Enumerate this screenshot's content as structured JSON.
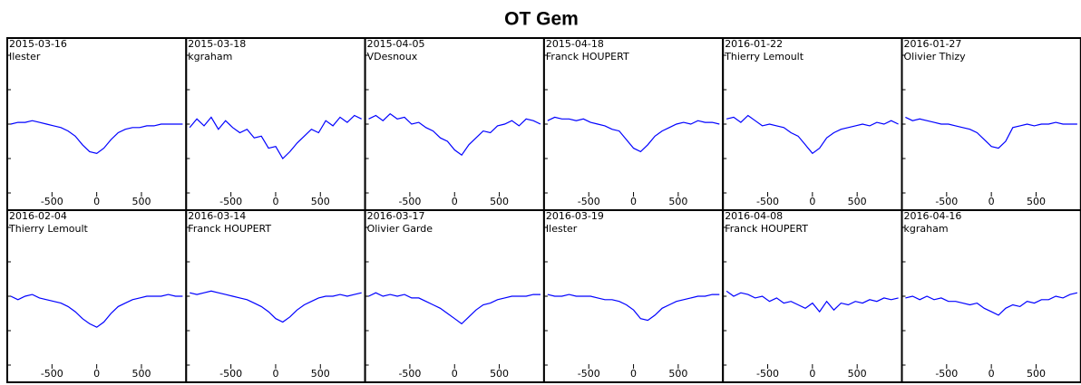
{
  "title": "OT Gem",
  "chart_data": [
    {
      "type": "line",
      "title": "2015-03-16",
      "subtitle": "Ilester",
      "color": "#0000ff",
      "xlim": [
        -1000,
        1000
      ],
      "xticks": [
        -500,
        0,
        500
      ],
      "ylim": [
        0.5,
        1.5
      ],
      "yticks": [
        0.6,
        0.8,
        1.0,
        1.2,
        1.4
      ],
      "x": [
        -960,
        -880,
        -800,
        -720,
        -640,
        -560,
        -480,
        -400,
        -320,
        -240,
        -160,
        -80,
        0,
        80,
        160,
        240,
        320,
        400,
        480,
        560,
        640,
        720,
        800,
        880,
        960
      ],
      "values": [
        1.0,
        1.01,
        1.01,
        1.02,
        1.01,
        1.0,
        0.99,
        0.98,
        0.96,
        0.93,
        0.88,
        0.84,
        0.83,
        0.86,
        0.91,
        0.95,
        0.97,
        0.98,
        0.98,
        0.99,
        0.99,
        1.0,
        1.0,
        1.0,
        1.0
      ]
    },
    {
      "type": "line",
      "title": "2015-03-18",
      "subtitle": "kgraham",
      "color": "#0000ff",
      "xlim": [
        -1000,
        1000
      ],
      "xticks": [
        -500,
        0,
        500
      ],
      "ylim": [
        0.5,
        1.5
      ],
      "yticks": [
        0.6,
        0.8,
        1.0,
        1.2,
        1.4
      ],
      "x": [
        -960,
        -880,
        -800,
        -720,
        -640,
        -560,
        -480,
        -400,
        -320,
        -240,
        -160,
        -80,
        0,
        80,
        160,
        240,
        320,
        400,
        480,
        560,
        640,
        720,
        800,
        880,
        960
      ],
      "values": [
        0.98,
        1.03,
        0.99,
        1.04,
        0.97,
        1.02,
        0.98,
        0.95,
        0.97,
        0.92,
        0.93,
        0.86,
        0.87,
        0.8,
        0.84,
        0.89,
        0.93,
        0.97,
        0.95,
        1.02,
        0.99,
        1.04,
        1.01,
        1.05,
        1.03
      ]
    },
    {
      "type": "line",
      "title": "2015-04-05",
      "subtitle": "VDesnoux",
      "color": "#0000ff",
      "xlim": [
        -1000,
        1000
      ],
      "xticks": [
        -500,
        0,
        500
      ],
      "ylim": [
        0.5,
        1.5
      ],
      "yticks": [
        0.6,
        0.8,
        1.0,
        1.2,
        1.4
      ],
      "x": [
        -960,
        -880,
        -800,
        -720,
        -640,
        -560,
        -480,
        -400,
        -320,
        -240,
        -160,
        -80,
        0,
        80,
        160,
        240,
        320,
        400,
        480,
        560,
        640,
        720,
        800,
        880,
        960
      ],
      "values": [
        1.03,
        1.05,
        1.02,
        1.06,
        1.03,
        1.04,
        1.0,
        1.01,
        0.98,
        0.96,
        0.92,
        0.9,
        0.85,
        0.82,
        0.88,
        0.92,
        0.96,
        0.95,
        0.99,
        1.0,
        1.02,
        0.99,
        1.03,
        1.02,
        1.0
      ]
    },
    {
      "type": "line",
      "title": "2015-04-18",
      "subtitle": "Franck HOUPERT",
      "color": "#0000ff",
      "xlim": [
        -1000,
        1000
      ],
      "xticks": [
        -500,
        0,
        500
      ],
      "ylim": [
        0.5,
        1.5
      ],
      "yticks": [
        0.6,
        0.8,
        1.0,
        1.2,
        1.4
      ],
      "x": [
        -960,
        -880,
        -800,
        -720,
        -640,
        -560,
        -480,
        -400,
        -320,
        -240,
        -160,
        -80,
        0,
        80,
        160,
        240,
        320,
        400,
        480,
        560,
        640,
        720,
        800,
        880,
        960
      ],
      "values": [
        1.02,
        1.04,
        1.03,
        1.03,
        1.02,
        1.03,
        1.01,
        1.0,
        0.99,
        0.97,
        0.96,
        0.91,
        0.86,
        0.84,
        0.88,
        0.93,
        0.96,
        0.98,
        1.0,
        1.01,
        1.0,
        1.02,
        1.01,
        1.01,
        1.0
      ]
    },
    {
      "type": "line",
      "title": "2016-01-22",
      "subtitle": "Thierry Lemoult",
      "color": "#0000ff",
      "xlim": [
        -1000,
        1000
      ],
      "xticks": [
        -500,
        0,
        500
      ],
      "ylim": [
        0.5,
        1.5
      ],
      "yticks": [
        0.6,
        0.8,
        1.0,
        1.2,
        1.4
      ],
      "x": [
        -960,
        -880,
        -800,
        -720,
        -640,
        -560,
        -480,
        -400,
        -320,
        -240,
        -160,
        -80,
        0,
        80,
        160,
        240,
        320,
        400,
        480,
        560,
        640,
        720,
        800,
        880,
        960
      ],
      "values": [
        1.03,
        1.04,
        1.01,
        1.05,
        1.02,
        0.99,
        1.0,
        0.99,
        0.98,
        0.95,
        0.93,
        0.88,
        0.83,
        0.86,
        0.92,
        0.95,
        0.97,
        0.98,
        0.99,
        1.0,
        0.99,
        1.01,
        1.0,
        1.02,
        1.0
      ]
    },
    {
      "type": "line",
      "title": "2016-01-27",
      "subtitle": "Olivier Thizy",
      "color": "#0000ff",
      "xlim": [
        -1000,
        1000
      ],
      "xticks": [
        -500,
        0,
        500
      ],
      "ylim": [
        0.5,
        1.5
      ],
      "yticks": [
        0.6,
        0.8,
        1.0,
        1.2,
        1.4
      ],
      "x": [
        -960,
        -880,
        -800,
        -720,
        -640,
        -560,
        -480,
        -400,
        -320,
        -240,
        -160,
        -80,
        0,
        80,
        160,
        240,
        320,
        400,
        480,
        560,
        640,
        720,
        800,
        880,
        960
      ],
      "values": [
        1.04,
        1.02,
        1.03,
        1.02,
        1.01,
        1.0,
        1.0,
        0.99,
        0.98,
        0.97,
        0.95,
        0.91,
        0.87,
        0.86,
        0.9,
        0.98,
        0.99,
        1.0,
        0.99,
        1.0,
        1.0,
        1.01,
        1.0,
        1.0,
        1.0
      ]
    },
    {
      "type": "line",
      "title": "2016-02-04",
      "subtitle": "Thierry Lemoult",
      "color": "#0000ff",
      "xlim": [
        -1000,
        1000
      ],
      "xticks": [
        -500,
        0,
        500
      ],
      "ylim": [
        0.5,
        1.5
      ],
      "yticks": [
        0.6,
        0.8,
        1.0,
        1.2,
        1.4
      ],
      "x": [
        -960,
        -880,
        -800,
        -720,
        -640,
        -560,
        -480,
        -400,
        -320,
        -240,
        -160,
        -80,
        0,
        80,
        160,
        240,
        320,
        400,
        480,
        560,
        640,
        720,
        800,
        880,
        960
      ],
      "values": [
        1.0,
        0.98,
        1.0,
        1.01,
        0.99,
        0.98,
        0.97,
        0.96,
        0.94,
        0.91,
        0.87,
        0.84,
        0.82,
        0.85,
        0.9,
        0.94,
        0.96,
        0.98,
        0.99,
        1.0,
        1.0,
        1.0,
        1.01,
        1.0,
        1.0
      ]
    },
    {
      "type": "line",
      "title": "2016-03-14",
      "subtitle": "Franck HOUPERT",
      "color": "#0000ff",
      "xlim": [
        -1000,
        1000
      ],
      "xticks": [
        -500,
        0,
        500
      ],
      "ylim": [
        0.5,
        1.5
      ],
      "yticks": [
        0.6,
        0.8,
        1.0,
        1.2,
        1.4
      ],
      "x": [
        -960,
        -880,
        -800,
        -720,
        -640,
        -560,
        -480,
        -400,
        -320,
        -240,
        -160,
        -80,
        0,
        80,
        160,
        240,
        320,
        400,
        480,
        560,
        640,
        720,
        800,
        880,
        960
      ],
      "values": [
        1.02,
        1.01,
        1.02,
        1.03,
        1.02,
        1.01,
        1.0,
        0.99,
        0.98,
        0.96,
        0.94,
        0.91,
        0.87,
        0.85,
        0.88,
        0.92,
        0.95,
        0.97,
        0.99,
        1.0,
        1.0,
        1.01,
        1.0,
        1.01,
        1.02
      ]
    },
    {
      "type": "line",
      "title": "2016-03-17",
      "subtitle": "Olivier Garde",
      "color": "#0000ff",
      "xlim": [
        -1000,
        1000
      ],
      "xticks": [
        -500,
        0,
        500
      ],
      "ylim": [
        0.5,
        1.5
      ],
      "yticks": [
        0.6,
        0.8,
        1.0,
        1.2,
        1.4
      ],
      "x": [
        -960,
        -880,
        -800,
        -720,
        -640,
        -560,
        -480,
        -400,
        -320,
        -240,
        -160,
        -80,
        0,
        80,
        160,
        240,
        320,
        400,
        480,
        560,
        640,
        720,
        800,
        880,
        960
      ],
      "values": [
        1.0,
        1.02,
        1.0,
        1.01,
        1.0,
        1.01,
        0.99,
        0.99,
        0.97,
        0.95,
        0.93,
        0.9,
        0.87,
        0.84,
        0.88,
        0.92,
        0.95,
        0.96,
        0.98,
        0.99,
        1.0,
        1.0,
        1.0,
        1.01,
        1.01
      ]
    },
    {
      "type": "line",
      "title": "2016-03-19",
      "subtitle": "Ilester",
      "color": "#0000ff",
      "xlim": [
        -1000,
        1000
      ],
      "xticks": [
        -500,
        0,
        500
      ],
      "ylim": [
        0.5,
        1.5
      ],
      "yticks": [
        0.6,
        0.8,
        1.0,
        1.2,
        1.4
      ],
      "x": [
        -960,
        -880,
        -800,
        -720,
        -640,
        -560,
        -480,
        -400,
        -320,
        -240,
        -160,
        -80,
        0,
        80,
        160,
        240,
        320,
        400,
        480,
        560,
        640,
        720,
        800,
        880,
        960
      ],
      "values": [
        1.01,
        1.0,
        1.0,
        1.01,
        1.0,
        1.0,
        1.0,
        0.99,
        0.98,
        0.98,
        0.97,
        0.95,
        0.92,
        0.87,
        0.86,
        0.89,
        0.93,
        0.95,
        0.97,
        0.98,
        0.99,
        1.0,
        1.0,
        1.01,
        1.01
      ]
    },
    {
      "type": "line",
      "title": "2016-04-08",
      "subtitle": "Franck HOUPERT",
      "color": "#0000ff",
      "xlim": [
        -1000,
        1000
      ],
      "xticks": [
        -500,
        0,
        500
      ],
      "ylim": [
        0.5,
        1.5
      ],
      "yticks": [
        0.6,
        0.8,
        1.0,
        1.2,
        1.4
      ],
      "x": [
        -960,
        -880,
        -800,
        -720,
        -640,
        -560,
        -480,
        -400,
        -320,
        -240,
        -160,
        -80,
        0,
        80,
        160,
        240,
        320,
        400,
        480,
        560,
        640,
        720,
        800,
        880,
        960
      ],
      "values": [
        1.03,
        1.0,
        1.02,
        1.01,
        0.99,
        1.0,
        0.97,
        0.99,
        0.96,
        0.97,
        0.95,
        0.93,
        0.96,
        0.91,
        0.97,
        0.92,
        0.96,
        0.95,
        0.97,
        0.96,
        0.98,
        0.97,
        0.99,
        0.98,
        0.99
      ]
    },
    {
      "type": "line",
      "title": "2016-04-16",
      "subtitle": "kgraham",
      "color": "#0000ff",
      "xlim": [
        -1000,
        1000
      ],
      "xticks": [
        -500,
        0,
        500
      ],
      "ylim": [
        0.5,
        1.5
      ],
      "yticks": [
        0.6,
        0.8,
        1.0,
        1.2,
        1.4
      ],
      "x": [
        -960,
        -880,
        -800,
        -720,
        -640,
        -560,
        -480,
        -400,
        -320,
        -240,
        -160,
        -80,
        0,
        80,
        160,
        240,
        320,
        400,
        480,
        560,
        640,
        720,
        800,
        880,
        960
      ],
      "values": [
        0.99,
        1.0,
        0.98,
        1.0,
        0.98,
        0.99,
        0.97,
        0.97,
        0.96,
        0.95,
        0.96,
        0.93,
        0.91,
        0.89,
        0.93,
        0.95,
        0.94,
        0.97,
        0.96,
        0.98,
        0.98,
        1.0,
        0.99,
        1.01,
        1.02
      ]
    }
  ]
}
